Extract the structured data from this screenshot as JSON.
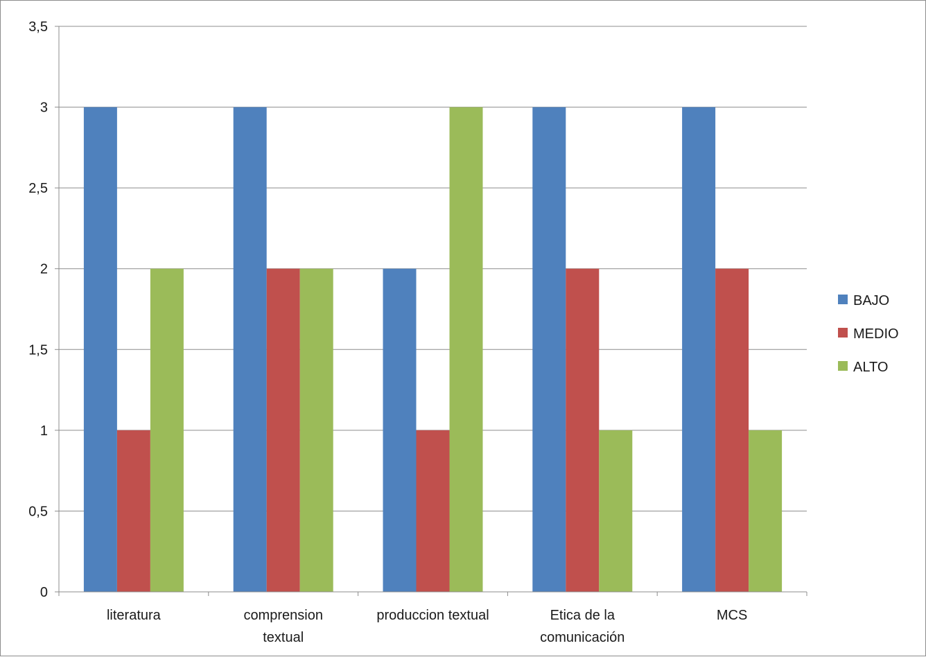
{
  "chart_data": {
    "type": "bar",
    "categories": [
      [
        "literatura"
      ],
      [
        "comprension",
        "textual"
      ],
      [
        "produccion textual"
      ],
      [
        "Etica de la",
        "comunicación"
      ],
      [
        "MCS"
      ]
    ],
    "series": [
      {
        "name": "BAJO",
        "color": "#4f81bd",
        "values": [
          3,
          3,
          2,
          3,
          3
        ]
      },
      {
        "name": "MEDIO",
        "color": "#c0504d",
        "values": [
          1,
          2,
          1,
          2,
          2
        ]
      },
      {
        "name": "ALTO",
        "color": "#9bbb59",
        "values": [
          2,
          2,
          3,
          1,
          1
        ]
      }
    ],
    "y_ticks": [
      "0",
      "0,5",
      "1",
      "1,5",
      "2",
      "2,5",
      "3",
      "3,5"
    ],
    "ylim": [
      0,
      3.5
    ],
    "y_step": 0.5,
    "grid": true,
    "legend_position": "right"
  }
}
